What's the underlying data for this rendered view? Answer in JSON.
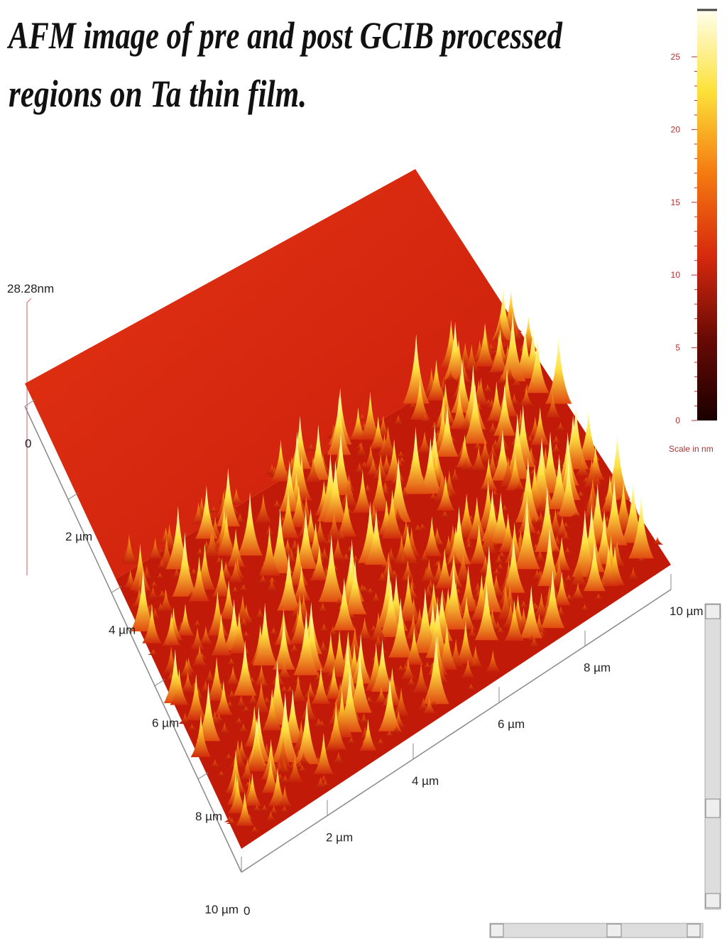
{
  "header": {
    "title_lines": [
      "AFM image of pre and post GCIB processed",
      "regions on Ta thin film."
    ]
  },
  "z_axis": {
    "label": "28.28nm"
  },
  "left_axis": {
    "labels": [
      "0",
      "2 µm",
      "4 µm",
      "6 µm",
      "8 µm",
      "10 µm"
    ]
  },
  "bottom_axis": {
    "labels": [
      "0",
      "2 µm",
      "4 µm",
      "6 µm",
      "8 µm",
      "10 µm"
    ]
  },
  "colorbar": {
    "ticks": [
      0,
      5,
      10,
      15,
      20,
      25
    ],
    "label": "Scale in nm"
  }
}
